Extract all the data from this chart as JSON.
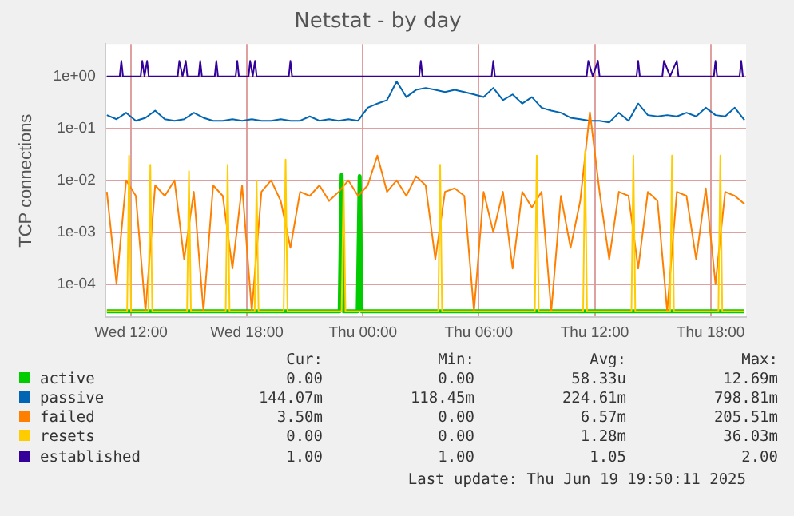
{
  "chart_data": {
    "type": "line",
    "title": "Netstat - by day",
    "ylabel": "TCP connections",
    "log": "y",
    "grid": true,
    "legend": "bottom",
    "marker": "none",
    "line_style": "solid",
    "xlim": [
      "2025-06-18T10:40",
      "2025-06-19T19:50"
    ],
    "xticks": [
      {
        "value": "2025-06-18T12:00",
        "label": "Wed 12:00"
      },
      {
        "value": "2025-06-18T18:00",
        "label": "Wed 18:00"
      },
      {
        "value": "2025-06-19T00:00",
        "label": "Thu 00:00"
      },
      {
        "value": "2025-06-19T06:00",
        "label": "Thu 06:00"
      },
      {
        "value": "2025-06-19T12:00",
        "label": "Thu 12:00"
      },
      {
        "value": "2025-06-19T18:00",
        "label": "Thu 18:00"
      }
    ],
    "ylim": [
      2.3e-05,
      4.2
    ],
    "yticks": [
      {
        "value": 0.0001,
        "label": "1e-04"
      },
      {
        "value": 0.001,
        "label": "1e-03"
      },
      {
        "value": 0.01,
        "label": "1e-02"
      },
      {
        "value": 0.1,
        "label": "1e-01"
      },
      {
        "value": 1,
        "label": "1e+00"
      }
    ],
    "x": [
      "2025-06-18T10:45",
      "2025-06-18T11:15",
      "2025-06-18T11:45",
      "2025-06-18T12:15",
      "2025-06-18T12:45",
      "2025-06-18T13:15",
      "2025-06-18T13:45",
      "2025-06-18T14:15",
      "2025-06-18T14:45",
      "2025-06-18T15:15",
      "2025-06-18T15:45",
      "2025-06-18T16:15",
      "2025-06-18T16:45",
      "2025-06-18T17:15",
      "2025-06-18T17:45",
      "2025-06-18T18:15",
      "2025-06-18T18:45",
      "2025-06-18T19:15",
      "2025-06-18T19:45",
      "2025-06-18T20:15",
      "2025-06-18T20:45",
      "2025-06-18T21:15",
      "2025-06-18T21:45",
      "2025-06-18T22:15",
      "2025-06-18T22:45",
      "2025-06-18T23:15",
      "2025-06-18T23:45",
      "2025-06-19T00:15",
      "2025-06-19T00:45",
      "2025-06-19T01:15",
      "2025-06-19T01:45",
      "2025-06-19T02:15",
      "2025-06-19T02:45",
      "2025-06-19T03:15",
      "2025-06-19T03:45",
      "2025-06-19T04:15",
      "2025-06-19T04:45",
      "2025-06-19T05:15",
      "2025-06-19T05:45",
      "2025-06-19T06:15",
      "2025-06-19T06:45",
      "2025-06-19T07:15",
      "2025-06-19T07:45",
      "2025-06-19T08:15",
      "2025-06-19T08:45",
      "2025-06-19T09:15",
      "2025-06-19T09:45",
      "2025-06-19T10:15",
      "2025-06-19T10:45",
      "2025-06-19T11:15",
      "2025-06-19T11:45",
      "2025-06-19T12:15",
      "2025-06-19T12:45",
      "2025-06-19T13:15",
      "2025-06-19T13:45",
      "2025-06-19T14:15",
      "2025-06-19T14:45",
      "2025-06-19T15:15",
      "2025-06-19T15:45",
      "2025-06-19T16:15",
      "2025-06-19T16:45",
      "2025-06-19T17:15",
      "2025-06-19T17:45",
      "2025-06-19T18:15",
      "2025-06-19T18:45",
      "2025-06-19T19:15",
      "2025-06-19T19:45"
    ],
    "series": [
      {
        "name": "active",
        "color": "#00cc00",
        "x": [
          "2025-06-18T10:45",
          "2025-06-18T22:48",
          "2025-06-18T22:54",
          "2025-06-18T23:00",
          "2025-06-18T23:44",
          "2025-06-18T23:50",
          "2025-06-18T23:56",
          "2025-06-19T19:45"
        ],
        "values": [
          3e-05,
          3e-05,
          0.0127,
          3e-05,
          3e-05,
          0.012,
          3e-05,
          3e-05
        ]
      },
      {
        "name": "passive",
        "color": "#0066b3",
        "values": [
          0.18,
          0.15,
          0.2,
          0.14,
          0.16,
          0.22,
          0.15,
          0.14,
          0.15,
          0.2,
          0.16,
          0.14,
          0.14,
          0.15,
          0.14,
          0.15,
          0.14,
          0.14,
          0.15,
          0.14,
          0.14,
          0.17,
          0.14,
          0.15,
          0.14,
          0.15,
          0.14,
          0.25,
          0.3,
          0.35,
          0.8,
          0.4,
          0.55,
          0.6,
          0.55,
          0.5,
          0.55,
          0.5,
          0.45,
          0.4,
          0.6,
          0.35,
          0.45,
          0.3,
          0.4,
          0.25,
          0.22,
          0.2,
          0.16,
          0.15,
          0.14,
          0.14,
          0.13,
          0.2,
          0.14,
          0.3,
          0.18,
          0.17,
          0.18,
          0.17,
          0.2,
          0.17,
          0.25,
          0.18,
          0.17,
          0.25,
          0.144
        ]
      },
      {
        "name": "failed",
        "color": "#ff8000",
        "values": [
          0.006,
          0.0001,
          0.01,
          0.005,
          3e-05,
          0.008,
          0.005,
          0.01,
          0.0003,
          0.006,
          3e-05,
          0.008,
          0.005,
          0.0002,
          0.008,
          3e-05,
          0.006,
          0.01,
          0.004,
          0.0005,
          0.006,
          0.005,
          0.008,
          0.004,
          0.006,
          0.01,
          0.005,
          0.008,
          0.03,
          0.006,
          0.01,
          0.005,
          0.012,
          0.008,
          0.0003,
          0.006,
          0.007,
          0.005,
          3e-05,
          0.006,
          0.001,
          0.006,
          0.0002,
          0.006,
          0.003,
          0.006,
          3e-05,
          0.005,
          0.0005,
          0.004,
          0.205,
          0.006,
          0.0003,
          0.006,
          0.005,
          0.0002,
          0.006,
          0.004,
          3e-05,
          0.006,
          0.005,
          0.0003,
          0.007,
          0.0001,
          0.006,
          0.005,
          0.0035
        ]
      },
      {
        "name": "resets",
        "color": "#ffcc00",
        "x": [
          "2025-06-18T10:45",
          "2025-06-18T11:48",
          "2025-06-18T11:54",
          "2025-06-18T12:00",
          "2025-06-18T12:54",
          "2025-06-18T13:00",
          "2025-06-18T13:06",
          "2025-06-18T14:54",
          "2025-06-18T15:00",
          "2025-06-18T15:06",
          "2025-06-18T16:54",
          "2025-06-18T17:00",
          "2025-06-18T17:06",
          "2025-06-18T18:24",
          "2025-06-18T18:30",
          "2025-06-18T18:36",
          "2025-06-18T19:54",
          "2025-06-18T20:00",
          "2025-06-18T20:06",
          "2025-06-18T22:54",
          "2025-06-18T23:00",
          "2025-06-18T23:06",
          "2025-06-19T03:54",
          "2025-06-19T04:00",
          "2025-06-19T04:06",
          "2025-06-19T08:54",
          "2025-06-19T09:00",
          "2025-06-19T09:06",
          "2025-06-19T11:24",
          "2025-06-19T11:30",
          "2025-06-19T11:36",
          "2025-06-19T13:54",
          "2025-06-19T14:00",
          "2025-06-19T14:06",
          "2025-06-19T15:54",
          "2025-06-19T16:00",
          "2025-06-19T16:06",
          "2025-06-19T18:24",
          "2025-06-19T18:30",
          "2025-06-19T18:36",
          "2025-06-19T19:45"
        ],
        "values": [
          3e-05,
          3e-05,
          0.03,
          3e-05,
          3e-05,
          0.02,
          3e-05,
          3e-05,
          0.015,
          3e-05,
          3e-05,
          0.02,
          3e-05,
          3e-05,
          0.01,
          3e-05,
          3e-05,
          0.025,
          3e-05,
          3e-05,
          0.01,
          3e-05,
          3e-05,
          0.02,
          3e-05,
          3e-05,
          0.03,
          3e-05,
          3e-05,
          0.036,
          3e-05,
          3e-05,
          0.03,
          3e-05,
          3e-05,
          0.03,
          3e-05,
          3e-05,
          0.03,
          3e-05,
          3e-05
        ]
      },
      {
        "name": "established",
        "color": "#330099",
        "x": [
          "2025-06-18T10:45",
          "2025-06-18T11:25",
          "2025-06-18T11:30",
          "2025-06-18T11:35",
          "2025-06-18T12:30",
          "2025-06-18T12:35",
          "2025-06-18T12:42",
          "2025-06-18T12:50",
          "2025-06-18T12:55",
          "2025-06-18T14:25",
          "2025-06-18T14:30",
          "2025-06-18T14:40",
          "2025-06-18T14:50",
          "2025-06-18T14:55",
          "2025-06-18T15:30",
          "2025-06-18T15:35",
          "2025-06-18T15:40",
          "2025-06-18T16:20",
          "2025-06-18T16:25",
          "2025-06-18T16:30",
          "2025-06-18T17:25",
          "2025-06-18T17:30",
          "2025-06-18T17:35",
          "2025-06-18T18:05",
          "2025-06-18T18:10",
          "2025-06-18T18:18",
          "2025-06-18T18:25",
          "2025-06-18T18:30",
          "2025-06-18T20:10",
          "2025-06-18T20:15",
          "2025-06-18T20:20",
          "2025-06-19T02:55",
          "2025-06-19T03:00",
          "2025-06-19T03:05",
          "2025-06-19T06:40",
          "2025-06-19T06:45",
          "2025-06-19T06:50",
          "2025-06-19T11:35",
          "2025-06-19T11:40",
          "2025-06-19T11:54",
          "2025-06-19T12:10",
          "2025-06-19T12:15",
          "2025-06-19T14:10",
          "2025-06-19T14:15",
          "2025-06-19T14:20",
          "2025-06-19T15:30",
          "2025-06-19T15:35",
          "2025-06-19T15:54",
          "2025-06-19T16:15",
          "2025-06-19T16:20",
          "2025-06-19T18:10",
          "2025-06-19T18:15",
          "2025-06-19T18:20",
          "2025-06-19T19:30",
          "2025-06-19T19:35",
          "2025-06-19T19:40",
          "2025-06-19T19:45"
        ],
        "values": [
          1,
          1,
          2,
          1,
          1,
          2,
          1,
          2,
          1,
          1,
          2,
          1,
          2,
          1,
          1,
          2,
          1,
          1,
          2,
          1,
          1,
          2,
          1,
          1,
          2,
          1,
          2,
          1,
          1,
          2,
          1,
          1,
          2,
          1,
          1,
          2,
          1,
          1,
          2,
          1,
          2,
          1,
          1,
          2,
          1,
          1,
          2,
          1,
          2,
          1,
          1,
          2,
          1,
          1,
          2,
          1,
          1
        ]
      }
    ],
    "annotations": [
      "Cur:",
      "Min:",
      "Avg:",
      "Max:",
      "0.00",
      "0.00",
      "58.33u",
      "12.69m",
      "144.07m",
      "118.45m",
      "224.61m",
      "798.81m",
      "3.50m",
      "0.00",
      "6.57m",
      "205.51m",
      "0.00",
      "0.00",
      "1.28m",
      "36.03m",
      "1.00",
      "1.00",
      "1.05",
      "2.00",
      "Last update: Thu Jun 19 19:50:11 2025"
    ]
  }
}
